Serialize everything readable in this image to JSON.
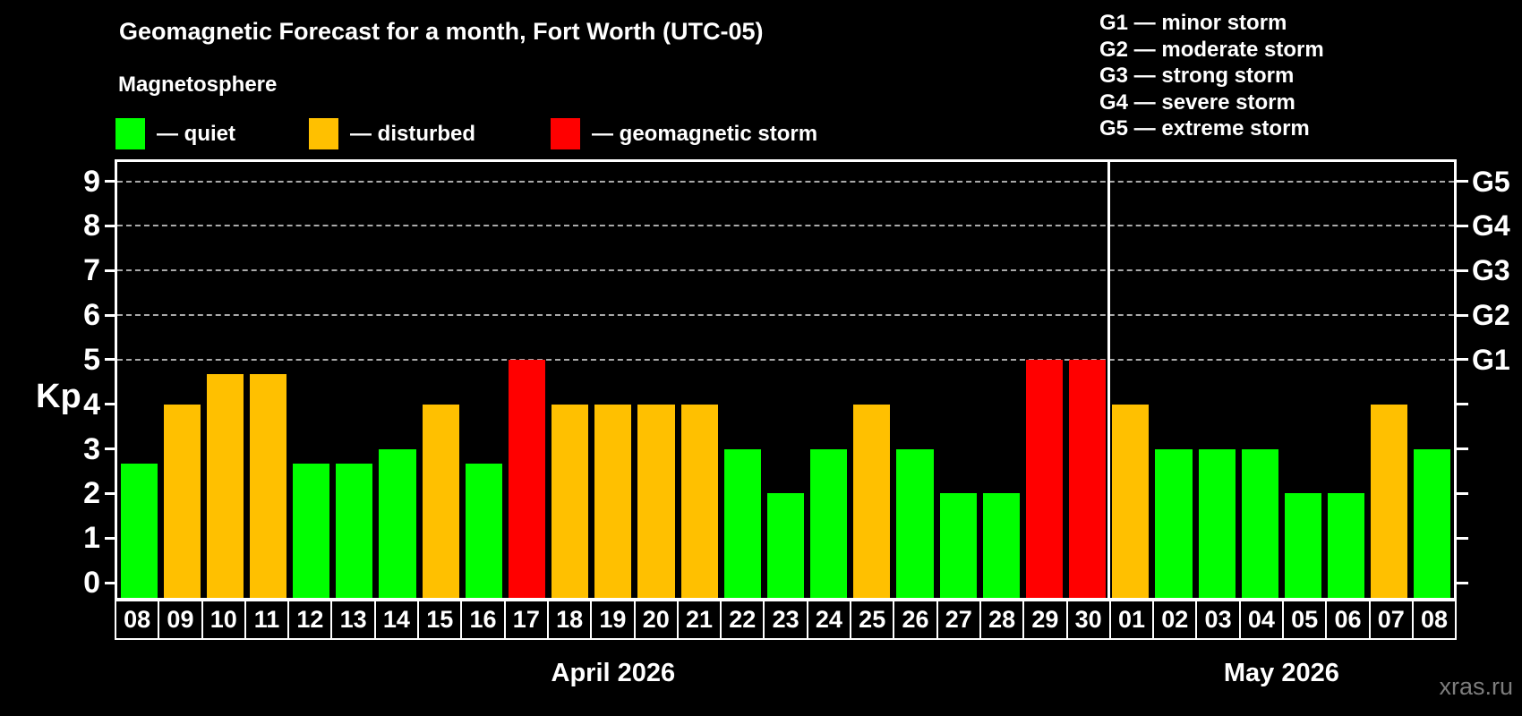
{
  "header": {
    "title": "Geomagnetic Forecast for a month, Fort Worth (UTC-05)",
    "subtitle": "Magnetosphere"
  },
  "legend": {
    "items": [
      {
        "key": "quiet",
        "label": "— quiet",
        "color": "#00ff00"
      },
      {
        "key": "disturbed",
        "label": "— disturbed",
        "color": "#ffc000"
      },
      {
        "key": "storm",
        "label": "— geomagnetic storm",
        "color": "#ff0000"
      }
    ]
  },
  "g_legend": {
    "items": [
      "G1 — minor storm",
      "G2 — moderate storm",
      "G3 — strong storm",
      "G4 — severe storm",
      "G5 — extreme storm"
    ]
  },
  "watermark": "xras.ru",
  "chart_data": {
    "type": "bar",
    "title": "Geomagnetic Forecast for a month, Fort Worth (UTC-05)",
    "ylabel": "Kp",
    "ylim": [
      0,
      9
    ],
    "yticks": [
      0,
      1,
      2,
      3,
      4,
      5,
      6,
      7,
      8,
      9
    ],
    "gridline_levels": [
      5,
      6,
      7,
      8,
      9
    ],
    "grid_color": "#aaaaaa",
    "legend_position": "top",
    "right_axis": [
      {
        "kp": 5,
        "label": "G1"
      },
      {
        "kp": 6,
        "label": "G2"
      },
      {
        "kp": 7,
        "label": "G3"
      },
      {
        "kp": 8,
        "label": "G4"
      },
      {
        "kp": 9,
        "label": "G5"
      }
    ],
    "months": [
      {
        "label": "April 2026",
        "count": 23
      },
      {
        "label": "May 2026",
        "count": 8
      }
    ],
    "categories": [
      "08",
      "09",
      "10",
      "11",
      "12",
      "13",
      "14",
      "15",
      "16",
      "17",
      "18",
      "19",
      "20",
      "21",
      "22",
      "23",
      "24",
      "25",
      "26",
      "27",
      "28",
      "29",
      "30",
      "01",
      "02",
      "03",
      "04",
      "05",
      "06",
      "07",
      "08"
    ],
    "values": [
      2.67,
      4,
      4.67,
      4.67,
      2.67,
      2.67,
      3,
      4,
      2.67,
      5,
      4,
      4,
      4,
      4,
      3,
      2,
      3,
      4,
      3,
      2,
      2,
      5,
      5,
      4,
      3,
      3,
      3,
      2,
      2,
      4,
      3
    ],
    "statuses": [
      "quiet",
      "disturbed",
      "disturbed",
      "disturbed",
      "quiet",
      "quiet",
      "quiet",
      "disturbed",
      "quiet",
      "storm",
      "disturbed",
      "disturbed",
      "disturbed",
      "disturbed",
      "quiet",
      "quiet",
      "quiet",
      "disturbed",
      "quiet",
      "quiet",
      "quiet",
      "storm",
      "storm",
      "disturbed",
      "quiet",
      "quiet",
      "quiet",
      "quiet",
      "quiet",
      "disturbed",
      "quiet"
    ],
    "status_colors": {
      "quiet": "#00ff00",
      "disturbed": "#ffc000",
      "storm": "#ff0000"
    }
  }
}
